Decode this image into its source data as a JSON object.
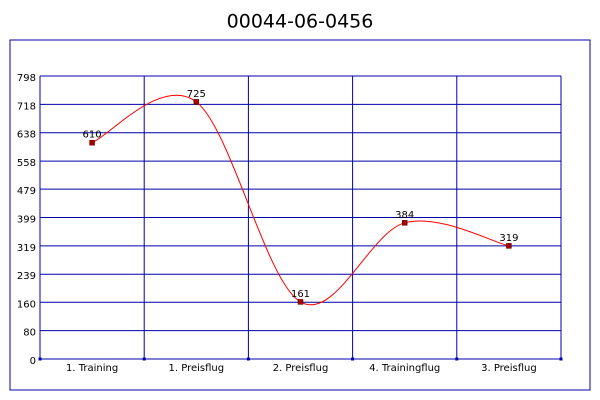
{
  "chart_data": {
    "type": "line",
    "title": "00044-06-0456",
    "categories": [
      "1. Training",
      "1. Preisflug",
      "2. Preisflug",
      "4. Trainingflug",
      "3. Preisflug"
    ],
    "series": [
      {
        "color": "#ff0000",
        "values": [
          610,
          725,
          161,
          384,
          319
        ]
      }
    ],
    "ylim": [
      0,
      798
    ],
    "yticks": [
      0,
      80,
      160,
      239,
      319,
      399,
      479,
      558,
      638,
      718,
      798
    ],
    "grid": true,
    "grid_color": "#0000aa",
    "smooth": true
  }
}
